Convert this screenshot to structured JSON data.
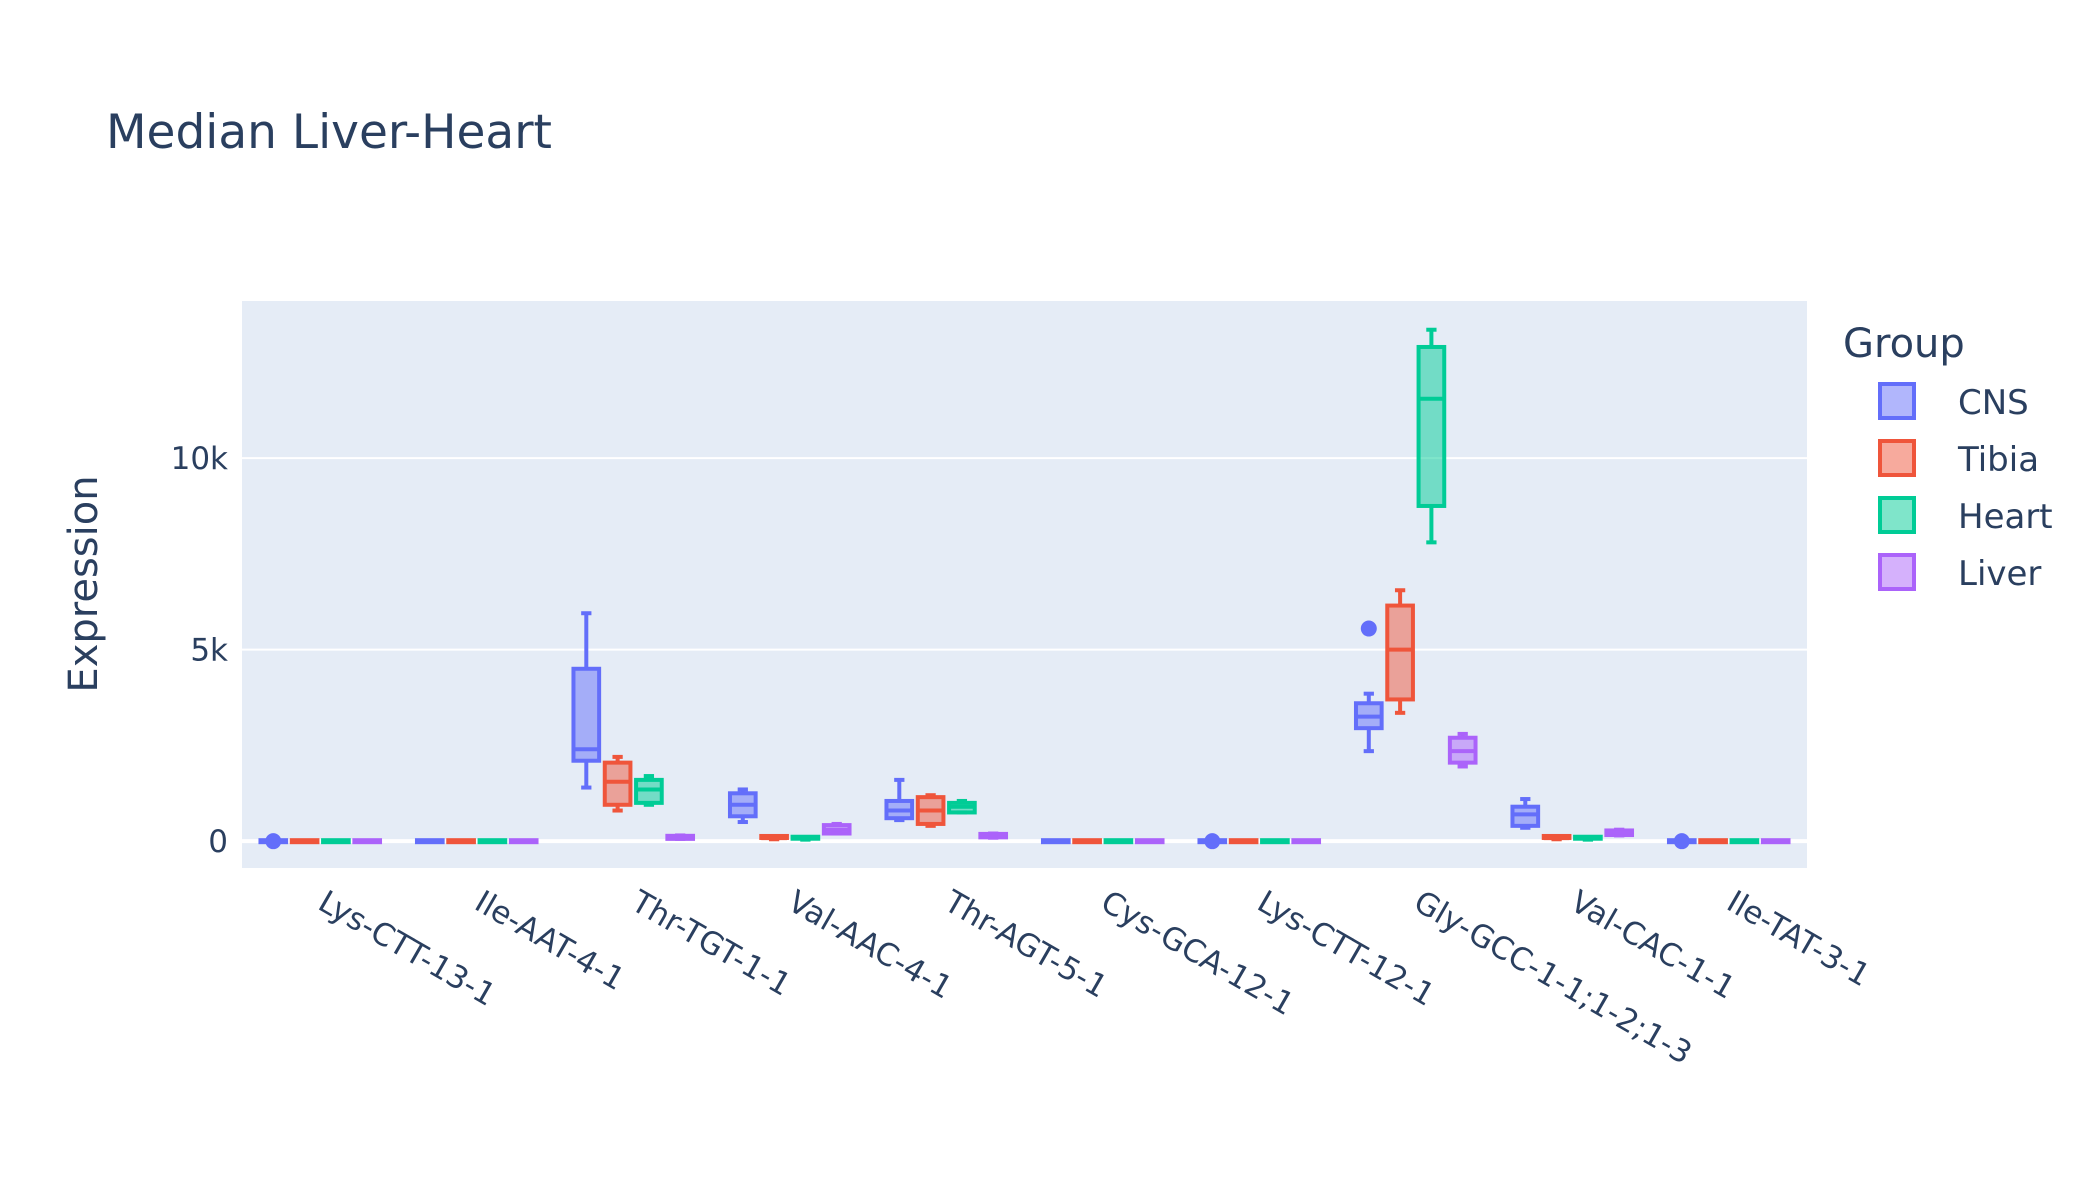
{
  "chart_data": {
    "type": "box",
    "title": "Median Liver-Heart",
    "xlabel": "",
    "ylabel": "Expression",
    "ylim": [
      -700,
      14100
    ],
    "yticks": [
      {
        "value": 0,
        "label": "0"
      },
      {
        "value": 5000,
        "label": "5k"
      },
      {
        "value": 10000,
        "label": "10k"
      }
    ],
    "grid": true,
    "legend": {
      "title": "Group",
      "placement": "right"
    },
    "categories": [
      "Lys-CTT-13-1",
      "Ile-AAT-4-1",
      "Thr-TGT-1-1",
      "Val-AAC-4-1",
      "Thr-AGT-5-1",
      "Cys-GCA-12-1",
      "Lys-CTT-12-1",
      "Gly-GCC-1-1;1-2;1-3",
      "Val-CAC-1-1",
      "Ile-TAT-3-1"
    ],
    "series": [
      {
        "name": "CNS",
        "color": "#636efa",
        "boxes": [
          {
            "min": 0,
            "q1": 0,
            "median": 0,
            "q3": 0,
            "max": 0,
            "outliers": [
              0
            ]
          },
          {
            "min": 0,
            "q1": 0,
            "median": 0,
            "q3": 0,
            "max": 0,
            "outliers": []
          },
          {
            "min": 1400,
            "q1": 2100,
            "median": 2400,
            "q3": 4500,
            "max": 5950,
            "outliers": []
          },
          {
            "min": 500,
            "q1": 650,
            "median": 950,
            "q3": 1250,
            "max": 1350,
            "outliers": []
          },
          {
            "min": 550,
            "q1": 600,
            "median": 800,
            "q3": 1050,
            "max": 1600,
            "outliers": []
          },
          {
            "min": 0,
            "q1": 0,
            "median": 0,
            "q3": 0,
            "max": 0,
            "outliers": []
          },
          {
            "min": 0,
            "q1": 0,
            "median": 0,
            "q3": 0,
            "max": 0,
            "outliers": [
              0
            ]
          },
          {
            "min": 2350,
            "q1": 2950,
            "median": 3250,
            "q3": 3600,
            "max": 3850,
            "outliers": [
              5550
            ]
          },
          {
            "min": 350,
            "q1": 400,
            "median": 700,
            "q3": 900,
            "max": 1100,
            "outliers": []
          },
          {
            "min": 0,
            "q1": 0,
            "median": 0,
            "q3": 0,
            "max": 0,
            "outliers": [
              0
            ]
          }
        ]
      },
      {
        "name": "Tibia",
        "color": "#ef553b",
        "boxes": [
          {
            "min": 0,
            "q1": 0,
            "median": 0,
            "q3": 0,
            "max": 0,
            "outliers": []
          },
          {
            "min": 0,
            "q1": 0,
            "median": 0,
            "q3": 0,
            "max": 0,
            "outliers": []
          },
          {
            "min": 800,
            "q1": 950,
            "median": 1550,
            "q3": 2050,
            "max": 2200,
            "outliers": []
          },
          {
            "min": 50,
            "q1": 60,
            "median": 80,
            "q3": 110,
            "max": 120,
            "outliers": []
          },
          {
            "min": 400,
            "q1": 450,
            "median": 800,
            "q3": 1150,
            "max": 1200,
            "outliers": []
          },
          {
            "min": 0,
            "q1": 0,
            "median": 0,
            "q3": 0,
            "max": 0,
            "outliers": []
          },
          {
            "min": 0,
            "q1": 0,
            "median": 0,
            "q3": 0,
            "max": 0,
            "outliers": []
          },
          {
            "min": 3350,
            "q1": 3700,
            "median": 5000,
            "q3": 6150,
            "max": 6550,
            "outliers": []
          },
          {
            "min": 50,
            "q1": 60,
            "median": 80,
            "q3": 110,
            "max": 120,
            "outliers": []
          },
          {
            "min": 0,
            "q1": 0,
            "median": 0,
            "q3": 0,
            "max": 0,
            "outliers": []
          }
        ]
      },
      {
        "name": "Heart",
        "color": "#00cc96",
        "boxes": [
          {
            "min": 0,
            "q1": 0,
            "median": 0,
            "q3": 0,
            "max": 0,
            "outliers": []
          },
          {
            "min": 0,
            "q1": 0,
            "median": 0,
            "q3": 0,
            "max": 0,
            "outliers": []
          },
          {
            "min": 950,
            "q1": 1000,
            "median": 1350,
            "q3": 1600,
            "max": 1700,
            "outliers": []
          },
          {
            "min": 40,
            "q1": 50,
            "median": 70,
            "q3": 90,
            "max": 100,
            "outliers": []
          },
          {
            "min": 750,
            "q1": 750,
            "median": 900,
            "q3": 1000,
            "max": 1050,
            "outliers": []
          },
          {
            "min": 0,
            "q1": 0,
            "median": 0,
            "q3": 0,
            "max": 0,
            "outliers": []
          },
          {
            "min": 0,
            "q1": 0,
            "median": 0,
            "q3": 0,
            "max": 0,
            "outliers": []
          },
          {
            "min": 7800,
            "q1": 8750,
            "median": 11550,
            "q3": 12900,
            "max": 13350,
            "outliers": []
          },
          {
            "min": 40,
            "q1": 50,
            "median": 70,
            "q3": 90,
            "max": 100,
            "outliers": []
          },
          {
            "min": 0,
            "q1": 0,
            "median": 0,
            "q3": 0,
            "max": 0,
            "outliers": []
          }
        ]
      },
      {
        "name": "Liver",
        "color": "#ab63fa",
        "boxes": [
          {
            "min": 0,
            "q1": 0,
            "median": 0,
            "q3": 0,
            "max": 0,
            "outliers": []
          },
          {
            "min": 0,
            "q1": 0,
            "median": 0,
            "q3": 0,
            "max": 0,
            "outliers": []
          },
          {
            "min": 60,
            "q1": 60,
            "median": 100,
            "q3": 140,
            "max": 150,
            "outliers": []
          },
          {
            "min": 200,
            "q1": 200,
            "median": 300,
            "q3": 420,
            "max": 450,
            "outliers": []
          },
          {
            "min": 90,
            "q1": 100,
            "median": 150,
            "q3": 190,
            "max": 200,
            "outliers": []
          },
          {
            "min": 0,
            "q1": 0,
            "median": 0,
            "q3": 0,
            "max": 0,
            "outliers": []
          },
          {
            "min": 0,
            "q1": 0,
            "median": 0,
            "q3": 0,
            "max": 0,
            "outliers": []
          },
          {
            "min": 1950,
            "q1": 2050,
            "median": 2350,
            "q3": 2700,
            "max": 2800,
            "outliers": []
          },
          {
            "min": 150,
            "q1": 160,
            "median": 220,
            "q3": 280,
            "max": 300,
            "outliers": []
          },
          {
            "min": 0,
            "q1": 0,
            "median": 0,
            "q3": 0,
            "max": 0,
            "outliers": []
          }
        ]
      }
    ]
  }
}
